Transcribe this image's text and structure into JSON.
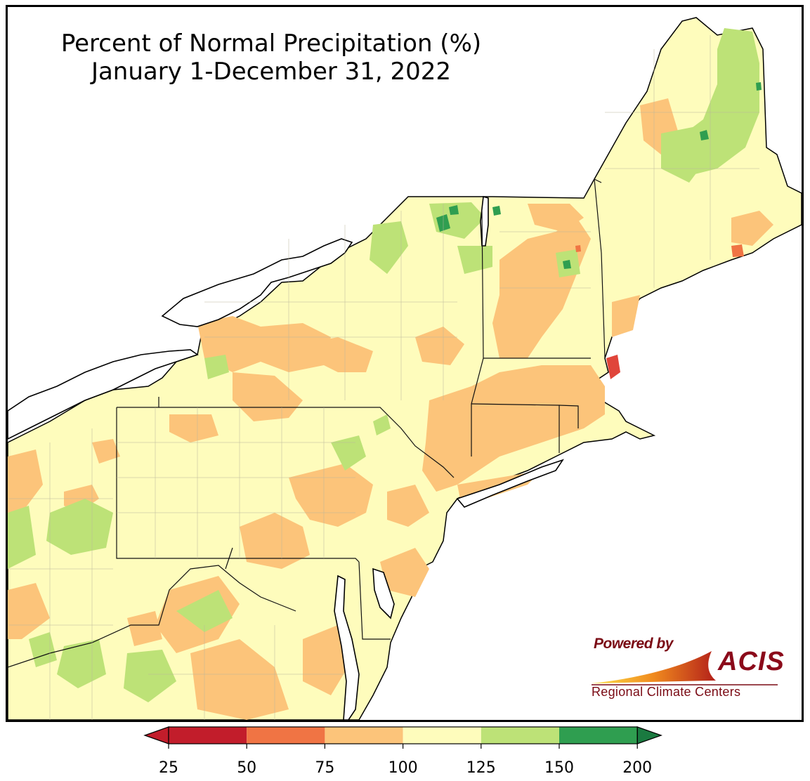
{
  "title": {
    "line1": "Percent of Normal Precipitation (%)",
    "line2": "January 1-December 31, 2022"
  },
  "logo": {
    "powered_by": "Powered by",
    "brand": "ACIS",
    "subtitle": "Regional Climate Centers"
  },
  "legend": {
    "ticks": [
      "25",
      "50",
      "75",
      "100",
      "125",
      "150",
      "200"
    ],
    "colors": [
      "#c21d2b",
      "#f07444",
      "#fcc47a",
      "#fefcbc",
      "#bde277",
      "#2f9e50"
    ],
    "under_color": "#c21d2b",
    "over_color": "#1a7a40"
  },
  "map_colors": {
    "land_base": "#fefcbc",
    "below_normal": "#fcc47a",
    "wet": "#bde277",
    "very_wet": "#2f9e50",
    "dry": "#f07444",
    "very_dry": "#e0453a",
    "water": "#ffffff"
  }
}
